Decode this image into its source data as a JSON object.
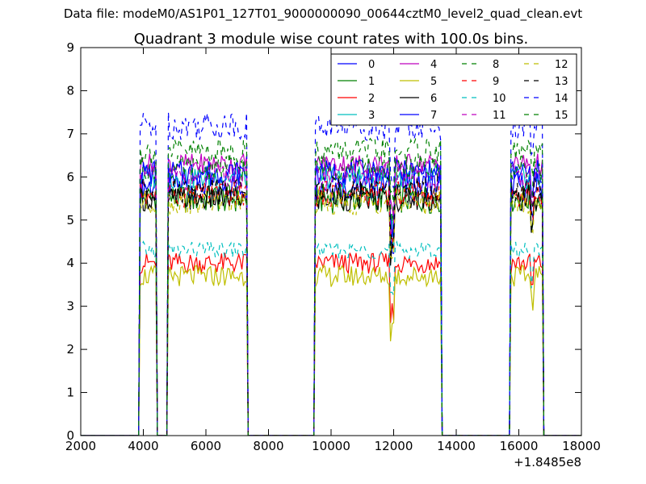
{
  "suptitle": "Data file: modeM0/AS1P01_127T01_9000000090_00644cztM0_level2_quad_clean.evt",
  "chart_data": {
    "type": "line",
    "title": "Quadrant 3 module wise count rates with 100.0s bins.",
    "xlabel": "",
    "ylabel": "",
    "x_offset_label": "+1.8485e8",
    "xlim": [
      2000,
      18000
    ],
    "ylim": [
      0,
      9
    ],
    "xticks": [
      2000,
      4000,
      6000,
      8000,
      10000,
      12000,
      14000,
      16000,
      18000
    ],
    "yticks": [
      0,
      1,
      2,
      3,
      4,
      5,
      6,
      7,
      8,
      9
    ],
    "grid": false,
    "legend": {
      "placement": "upper-right",
      "columns": 4
    },
    "segments": [
      {
        "start": 3900,
        "end": 4400
      },
      {
        "start": 4800,
        "end": 7300
      },
      {
        "start": 9500,
        "end": 13500
      },
      {
        "start": 15750,
        "end": 16750
      }
    ],
    "series": [
      {
        "name": "0",
        "color": "#0000ff",
        "dash": "solid",
        "level": 5.8,
        "amp": 0.35
      },
      {
        "name": "1",
        "color": "#008000",
        "dash": "solid",
        "level": 5.5,
        "amp": 0.35
      },
      {
        "name": "2",
        "color": "#ff0000",
        "dash": "solid",
        "level": 4.0,
        "amp": 0.25
      },
      {
        "name": "3",
        "color": "#00bfbf",
        "dash": "solid",
        "level": 6.0,
        "amp": 0.3
      },
      {
        "name": "4",
        "color": "#bf00bf",
        "dash": "solid",
        "level": 6.3,
        "amp": 0.25
      },
      {
        "name": "5",
        "color": "#bfbf00",
        "dash": "solid",
        "level": 3.7,
        "amp": 0.25
      },
      {
        "name": "6",
        "color": "#000000",
        "dash": "solid",
        "level": 5.5,
        "amp": 0.3
      },
      {
        "name": "7",
        "color": "#0000ff",
        "dash": "solid",
        "level": 6.1,
        "amp": 0.3
      },
      {
        "name": "8",
        "color": "#008000",
        "dash": "dashed",
        "level": 6.2,
        "amp": 0.3
      },
      {
        "name": "9",
        "color": "#ff0000",
        "dash": "dashed",
        "level": 5.6,
        "amp": 0.3
      },
      {
        "name": "10",
        "color": "#00bfbf",
        "dash": "dashed",
        "level": 4.3,
        "amp": 0.2
      },
      {
        "name": "11",
        "color": "#bf00bf",
        "dash": "dashed",
        "level": 6.0,
        "amp": 0.3
      },
      {
        "name": "12",
        "color": "#bfbf00",
        "dash": "dashed",
        "level": 5.4,
        "amp": 0.3
      },
      {
        "name": "13",
        "color": "#000000",
        "dash": "dashed",
        "level": 5.7,
        "amp": 0.3
      },
      {
        "name": "14",
        "color": "#0000ff",
        "dash": "dashed",
        "level": 7.2,
        "amp": 0.35
      },
      {
        "name": "15",
        "color": "#008000",
        "dash": "dashed",
        "level": 6.6,
        "amp": 0.3
      }
    ]
  }
}
